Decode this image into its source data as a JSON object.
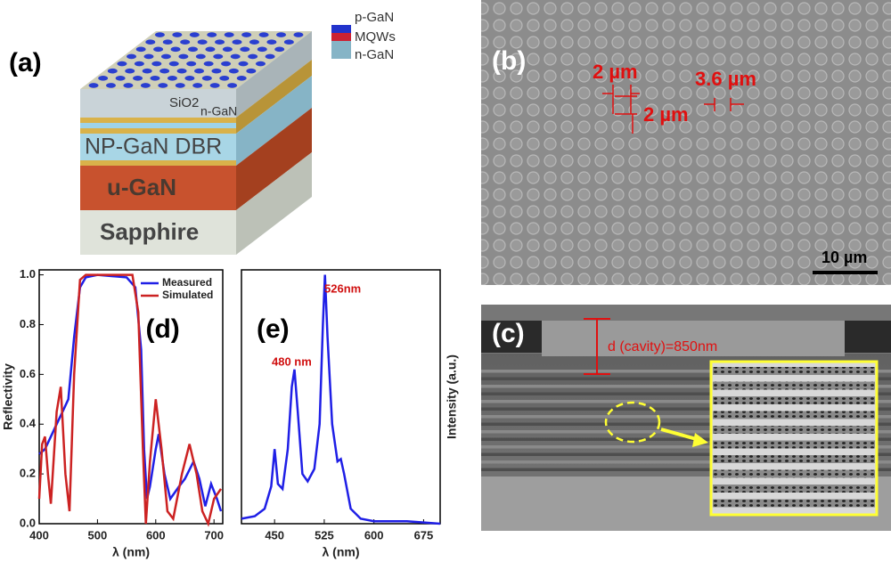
{
  "panels": {
    "a": {
      "label": "(a)",
      "legend": [
        "p-GaN",
        "MQWs",
        "n-GaN"
      ],
      "layers": [
        "SiO2",
        "n-GaN",
        "NP-GaN DBR",
        "u-GaN",
        "Sapphire"
      ]
    },
    "b": {
      "label": "(b)",
      "dims": [
        "2 µm",
        "2 µm",
        "3.6 µm"
      ],
      "scale": "10 µm"
    },
    "c": {
      "label": "(c)",
      "cavity": "d (cavity)=850nm"
    }
  },
  "chart_data": [
    {
      "type": "line",
      "panel_label": "(d)",
      "xlabel": "λ (nm)",
      "ylabel": "Reflectivity",
      "xlim": [
        400,
        715
      ],
      "ylim": [
        0,
        1.02
      ],
      "xticks": [
        400,
        500,
        600,
        700
      ],
      "yticks": [
        {
          "value": 0,
          "label": "0.0"
        },
        0.2,
        0.4,
        0.6,
        0.8,
        {
          "value": 1,
          "label": "1.0"
        }
      ],
      "legend": "upper right",
      "series": [
        {
          "name": "Measured",
          "color": "#1f1fe6",
          "x": [
            400,
            410,
            420,
            430,
            440,
            450,
            460,
            470,
            480,
            500,
            550,
            565,
            575,
            580,
            585,
            590,
            600,
            605,
            615,
            625,
            640,
            650,
            665,
            675,
            685,
            695,
            705,
            712
          ],
          "values": [
            0.28,
            0.3,
            0.35,
            0.4,
            0.45,
            0.5,
            0.75,
            0.95,
            0.99,
            1.0,
            0.99,
            0.95,
            0.7,
            0.3,
            0.1,
            0.15,
            0.3,
            0.36,
            0.2,
            0.1,
            0.15,
            0.18,
            0.25,
            0.18,
            0.07,
            0.16,
            0.1,
            0.05
          ]
        },
        {
          "name": "Simulated",
          "color": "#cc2222",
          "x": [
            400,
            405,
            410,
            415,
            420,
            430,
            437,
            445,
            452,
            460,
            470,
            480,
            560,
            570,
            578,
            583,
            590,
            600,
            610,
            620,
            630,
            645,
            658,
            670,
            680,
            690,
            700,
            712
          ],
          "values": [
            0.1,
            0.32,
            0.35,
            0.2,
            0.08,
            0.45,
            0.55,
            0.2,
            0.05,
            0.6,
            0.98,
            1.0,
            1.0,
            0.85,
            0.3,
            0.0,
            0.25,
            0.5,
            0.3,
            0.05,
            0.02,
            0.2,
            0.32,
            0.2,
            0.05,
            0.0,
            0.1,
            0.14
          ]
        }
      ]
    },
    {
      "type": "line",
      "panel_label": "(e)",
      "xlabel": "λ (nm)",
      "ylabel": "Intensity (a.u.)",
      "xlim": [
        400,
        700
      ],
      "ylim": [
        0,
        1.02
      ],
      "xticks": [
        450,
        525,
        600,
        675
      ],
      "annotations": [
        "526nm",
        "480 nm"
      ],
      "series": [
        {
          "color": "#1f1fe6",
          "x": [
            400,
            420,
            435,
            445,
            450,
            455,
            462,
            470,
            476,
            480,
            485,
            492,
            500,
            510,
            518,
            523,
            526,
            530,
            537,
            545,
            550,
            555,
            565,
            580,
            600,
            650,
            700
          ],
          "values": [
            0.02,
            0.03,
            0.06,
            0.15,
            0.3,
            0.16,
            0.14,
            0.3,
            0.55,
            0.62,
            0.45,
            0.2,
            0.17,
            0.22,
            0.4,
            0.8,
            1.0,
            0.75,
            0.4,
            0.25,
            0.26,
            0.2,
            0.06,
            0.02,
            0.01,
            0.01,
            0.0
          ]
        }
      ]
    }
  ]
}
